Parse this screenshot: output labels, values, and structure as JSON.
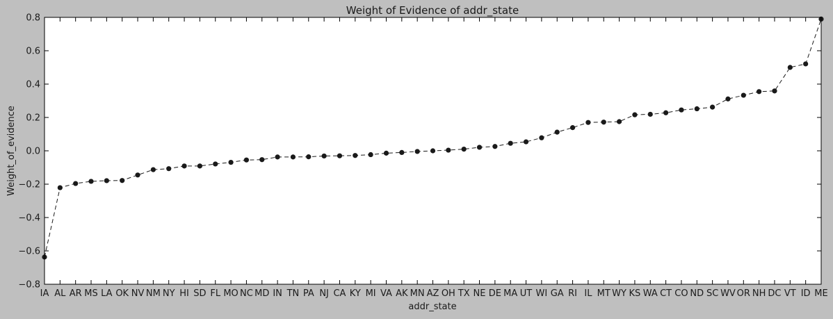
{
  "chart_data": {
    "type": "line",
    "title": "Weight of Evidence of addr_state",
    "xlabel": "addr_state",
    "ylabel": "Weight_of_evidence",
    "ylim": [
      -0.8,
      0.8
    ],
    "yticks": [
      -0.8,
      -0.6,
      -0.4,
      -0.2,
      0.0,
      0.2,
      0.4,
      0.6,
      0.8
    ],
    "ytick_labels": [
      "−0.8",
      "−0.6",
      "−0.4",
      "−0.2",
      "0.0",
      "0.2",
      "0.4",
      "0.6",
      "0.8"
    ],
    "grid": false,
    "line_style": "dashed",
    "marker": "circle",
    "series_color": "#1a1a1a",
    "categories": [
      "IA",
      "AL",
      "AR",
      "MS",
      "LA",
      "OK",
      "NV",
      "NM",
      "NY",
      "HI",
      "SD",
      "FL",
      "MO",
      "NC",
      "MD",
      "IN",
      "TN",
      "PA",
      "NJ",
      "CA",
      "KY",
      "MI",
      "VA",
      "AK",
      "MN",
      "AZ",
      "OH",
      "TX",
      "NE",
      "DE",
      "MA",
      "UT",
      "WI",
      "GA",
      "RI",
      "IL",
      "MT",
      "WY",
      "KS",
      "WA",
      "CT",
      "CO",
      "ND",
      "SC",
      "WV",
      "OR",
      "NH",
      "DC",
      "VT",
      "ID",
      "ME"
    ],
    "values": [
      -0.637,
      -0.221,
      -0.196,
      -0.183,
      -0.179,
      -0.178,
      -0.145,
      -0.113,
      -0.107,
      -0.091,
      -0.091,
      -0.079,
      -0.069,
      -0.055,
      -0.053,
      -0.037,
      -0.037,
      -0.036,
      -0.031,
      -0.03,
      -0.028,
      -0.023,
      -0.014,
      -0.01,
      -0.004,
      0.0,
      0.004,
      0.01,
      0.021,
      0.026,
      0.045,
      0.054,
      0.078,
      0.112,
      0.139,
      0.17,
      0.172,
      0.175,
      0.216,
      0.219,
      0.228,
      0.245,
      0.252,
      0.262,
      0.311,
      0.333,
      0.355,
      0.359,
      0.5,
      0.521,
      0.79
    ]
  }
}
